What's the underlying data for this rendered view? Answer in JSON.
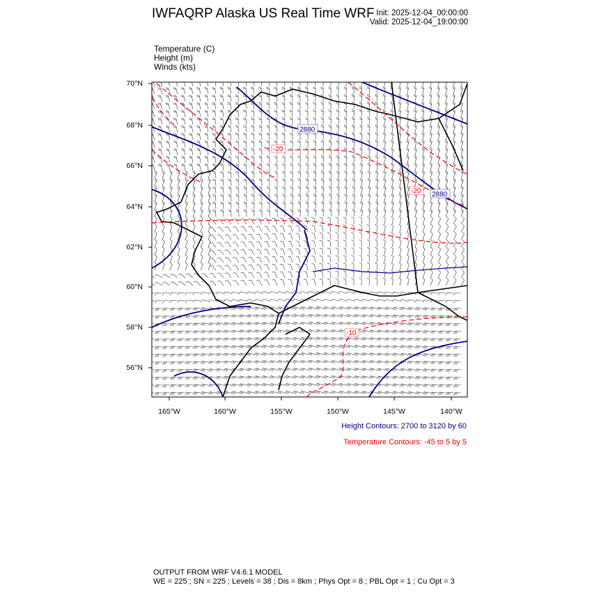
{
  "header": {
    "title": "IWFAQRP Alaska US Real Time WRF",
    "init": "Init: 2025-12-04_00:00:00",
    "valid": "Valid: 2025-12-04_19:00:00"
  },
  "fields": [
    "Temperature   (C)",
    "Height   (m)",
    "Winds   (kts)"
  ],
  "map": {
    "lat_labels": [
      "70°N",
      "68°N",
      "66°N",
      "64°N",
      "62°N",
      "60°N",
      "58°N",
      "56°N"
    ],
    "lon_labels": [
      "165°W",
      "160°W",
      "155°W",
      "150°W",
      "145°W",
      "140°W"
    ],
    "contour_labels": {
      "height": [
        "2880",
        "2880"
      ],
      "temperature": [
        "-20",
        "-20",
        "-10"
      ]
    },
    "colors": {
      "height": "#000080",
      "temperature": "#ff0000",
      "coast": "#000000",
      "barbs": "#333333"
    }
  },
  "legend": {
    "height": "Height Contours: 2700 to 3120 by 60",
    "temperature": "Temperature Contours: -45 to 5 by 5"
  },
  "footer": {
    "line1": "OUTPUT FROM WRF V4.6.1 MODEL",
    "line2": "WE = 225 ; SN = 225 ; Levels = 38 ; Dis = 8km ; Phys Opt = 8 ; PBL Opt = 1 ; Cu Opt = 3"
  }
}
